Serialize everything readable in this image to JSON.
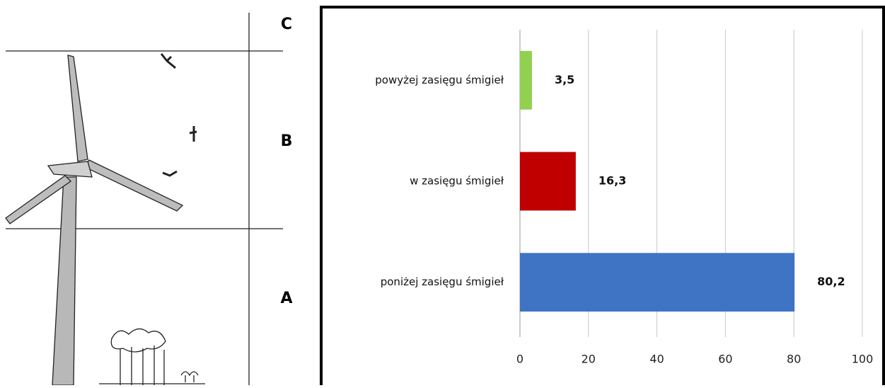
{
  "diagram": {
    "zones": [
      "C",
      "B",
      "A"
    ]
  },
  "chart_data": {
    "type": "bar",
    "orientation": "horizontal",
    "categories": [
      "powyżej zasięgu śmigieł",
      "w zasięgu śmigieł",
      "poniżej zasięgu śmigieł"
    ],
    "values": [
      3.5,
      16.3,
      80.2
    ],
    "value_labels": [
      "3,5",
      "16,3",
      "80,2"
    ],
    "colors": [
      "#92d050",
      "#c00000",
      "#3f74c4"
    ],
    "xlim": [
      0,
      100
    ],
    "xticks": [
      0,
      20,
      40,
      60,
      80,
      100
    ],
    "grid": true
  }
}
